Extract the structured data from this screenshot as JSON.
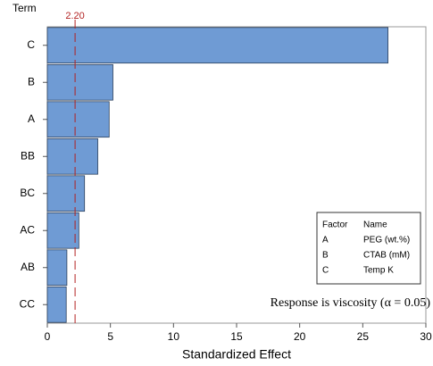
{
  "chart_data": {
    "type": "bar",
    "y_label": "Term",
    "x_label": "Standardized Effect",
    "categories": [
      "C",
      "B",
      "A",
      "BB",
      "BC",
      "AC",
      "AB",
      "CC"
    ],
    "values": [
      27.0,
      5.2,
      4.9,
      4.0,
      2.95,
      2.5,
      1.55,
      1.5
    ],
    "color": "#6f9bd4",
    "xlim": [
      0,
      30
    ],
    "xticks": [
      0,
      5,
      10,
      15,
      20,
      25,
      30
    ],
    "reference_line": {
      "value": 2.2,
      "label": "2.20"
    },
    "annotation": "Response is viscosity (α = 0.05)",
    "factor_table": {
      "header": [
        "Factor",
        "Name"
      ],
      "rows": [
        [
          "A",
          "PEG (wt.%)"
        ],
        [
          "B",
          "CTAB (mM)"
        ],
        [
          "C",
          "Temp K"
        ]
      ]
    }
  }
}
